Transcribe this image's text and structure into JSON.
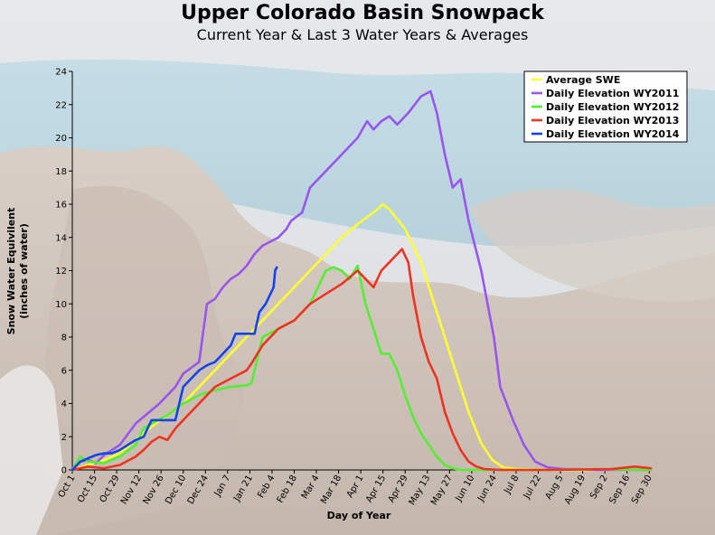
{
  "chart_data": {
    "type": "line",
    "title": "Upper Colorado Basin Snowpack",
    "subtitle": "Current Year & Last 3 Water Years & Averages",
    "xlabel": "Day of Year",
    "ylabel": "Snow Water Equivilent (inches of water)",
    "ylabel_lines": [
      "Snow Water Equivilent",
      "(inches of water)"
    ],
    "ylim": [
      0,
      24
    ],
    "yticks": [
      0,
      2,
      4,
      6,
      8,
      10,
      12,
      14,
      16,
      18,
      20,
      22,
      24
    ],
    "xlim": [
      0,
      365
    ],
    "xticks": [
      {
        "label": "Oct 1",
        "day": 0
      },
      {
        "label": "Oct 15",
        "day": 14
      },
      {
        "label": "Oct 29",
        "day": 28
      },
      {
        "label": "Nov 12",
        "day": 42
      },
      {
        "label": "Nov 26",
        "day": 56
      },
      {
        "label": "Dec 10",
        "day": 70
      },
      {
        "label": "Dec 24",
        "day": 84
      },
      {
        "label": "Jan 7",
        "day": 98
      },
      {
        "label": "Jan 21",
        "day": 112
      },
      {
        "label": "Feb 4",
        "day": 126
      },
      {
        "label": "Feb 18",
        "day": 140
      },
      {
        "label": "Mar 4",
        "day": 154
      },
      {
        "label": "Mar 18",
        "day": 168
      },
      {
        "label": "Apr 1",
        "day": 182
      },
      {
        "label": "Apr 15",
        "day": 196
      },
      {
        "label": "Apr 29",
        "day": 210
      },
      {
        "label": "May 13",
        "day": 224
      },
      {
        "label": "May 27",
        "day": 238
      },
      {
        "label": "Jun 10",
        "day": 252
      },
      {
        "label": "Jun 24",
        "day": 266
      },
      {
        "label": "Jul 8",
        "day": 280
      },
      {
        "label": "Jul 22",
        "day": 294
      },
      {
        "label": "Aug 5",
        "day": 308
      },
      {
        "label": "Aug 19",
        "day": 322
      },
      {
        "label": "Sep 2",
        "day": 336
      },
      {
        "label": "Sep 16",
        "day": 350
      },
      {
        "label": "Sep 30",
        "day": 364
      }
    ],
    "legend_position": "top-right",
    "grid": false,
    "series": [
      {
        "name": "Average SWE",
        "color": "#ffff33",
        "points": [
          [
            0,
            0
          ],
          [
            10,
            0.3
          ],
          [
            20,
            0.6
          ],
          [
            30,
            1.0
          ],
          [
            40,
            1.8
          ],
          [
            50,
            2.6
          ],
          [
            60,
            3.3
          ],
          [
            70,
            4.0
          ],
          [
            80,
            5.0
          ],
          [
            90,
            6.0
          ],
          [
            100,
            7.0
          ],
          [
            110,
            8.0
          ],
          [
            120,
            9.0
          ],
          [
            130,
            10.0
          ],
          [
            140,
            11.0
          ],
          [
            150,
            12.0
          ],
          [
            160,
            13.0
          ],
          [
            170,
            14.0
          ],
          [
            180,
            14.8
          ],
          [
            190,
            15.5
          ],
          [
            196,
            16.0
          ],
          [
            200,
            15.7
          ],
          [
            210,
            14.5
          ],
          [
            220,
            12.5
          ],
          [
            230,
            9.5
          ],
          [
            240,
            6.5
          ],
          [
            250,
            3.5
          ],
          [
            258,
            1.6
          ],
          [
            265,
            0.6
          ],
          [
            272,
            0.15
          ],
          [
            280,
            0.05
          ],
          [
            300,
            0
          ],
          [
            365,
            0
          ]
        ]
      },
      {
        "name": "Daily Elevation WY2011",
        "color": "#9955ee",
        "points": [
          [
            0,
            0.1
          ],
          [
            5,
            0.5
          ],
          [
            10,
            0.6
          ],
          [
            15,
            0.4
          ],
          [
            20,
            0.9
          ],
          [
            30,
            1.5
          ],
          [
            40,
            2.8
          ],
          [
            50,
            3.6
          ],
          [
            55,
            4.0
          ],
          [
            60,
            4.5
          ],
          [
            65,
            5.0
          ],
          [
            70,
            5.8
          ],
          [
            80,
            6.5
          ],
          [
            85,
            10.0
          ],
          [
            90,
            10.3
          ],
          [
            95,
            11.0
          ],
          [
            100,
            11.5
          ],
          [
            105,
            11.8
          ],
          [
            110,
            12.3
          ],
          [
            115,
            13.0
          ],
          [
            120,
            13.5
          ],
          [
            130,
            14.0
          ],
          [
            135,
            14.5
          ],
          [
            138,
            15.0
          ],
          [
            145,
            15.5
          ],
          [
            150,
            17.0
          ],
          [
            155,
            17.5
          ],
          [
            160,
            18.0
          ],
          [
            170,
            19.0
          ],
          [
            180,
            20.0
          ],
          [
            186,
            21.0
          ],
          [
            190,
            20.5
          ],
          [
            195,
            21.0
          ],
          [
            200,
            21.3
          ],
          [
            205,
            20.8
          ],
          [
            212,
            21.5
          ],
          [
            220,
            22.5
          ],
          [
            226,
            22.8
          ],
          [
            230,
            21.5
          ],
          [
            235,
            19.0
          ],
          [
            240,
            17.0
          ],
          [
            245,
            17.5
          ],
          [
            250,
            15.0
          ],
          [
            258,
            12.0
          ],
          [
            262,
            10.0
          ],
          [
            266,
            8.0
          ],
          [
            270,
            5.0
          ],
          [
            278,
            3.0
          ],
          [
            285,
            1.5
          ],
          [
            292,
            0.5
          ],
          [
            300,
            0.15
          ],
          [
            310,
            0.05
          ],
          [
            320,
            0.05
          ],
          [
            330,
            0
          ],
          [
            340,
            0
          ],
          [
            350,
            0
          ],
          [
            365,
            0
          ]
        ]
      },
      {
        "name": "Daily Elevation WY2012",
        "color": "#55ee33",
        "points": [
          [
            0,
            0
          ],
          [
            5,
            0.8
          ],
          [
            10,
            0.5
          ],
          [
            20,
            0.4
          ],
          [
            30,
            0.8
          ],
          [
            40,
            1.5
          ],
          [
            45,
            2.5
          ],
          [
            50,
            2.8
          ],
          [
            60,
            3.3
          ],
          [
            70,
            4.0
          ],
          [
            80,
            4.5
          ],
          [
            90,
            4.8
          ],
          [
            100,
            5.0
          ],
          [
            110,
            5.1
          ],
          [
            113,
            5.2
          ],
          [
            120,
            8.0
          ],
          [
            130,
            8.5
          ],
          [
            140,
            9.0
          ],
          [
            150,
            10.0
          ],
          [
            155,
            11.0
          ],
          [
            160,
            12.0
          ],
          [
            165,
            12.2
          ],
          [
            170,
            12.0
          ],
          [
            175,
            11.5
          ],
          [
            180,
            12.3
          ],
          [
            185,
            10.0
          ],
          [
            190,
            8.5
          ],
          [
            195,
            7.0
          ],
          [
            200,
            7.0
          ],
          [
            205,
            6.0
          ],
          [
            210,
            4.5
          ],
          [
            215,
            3.2
          ],
          [
            220,
            2.2
          ],
          [
            225,
            1.5
          ],
          [
            230,
            0.8
          ],
          [
            235,
            0.3
          ],
          [
            240,
            0.1
          ],
          [
            245,
            0
          ],
          [
            260,
            0
          ],
          [
            280,
            0
          ],
          [
            300,
            0
          ],
          [
            330,
            0.05
          ],
          [
            365,
            0
          ]
        ]
      },
      {
        "name": "Daily Elevation WY2013",
        "color": "#ee3322",
        "points": [
          [
            0,
            0
          ],
          [
            10,
            0.2
          ],
          [
            20,
            0.1
          ],
          [
            30,
            0.3
          ],
          [
            40,
            0.8
          ],
          [
            45,
            1.2
          ],
          [
            50,
            1.7
          ],
          [
            55,
            2.0
          ],
          [
            60,
            1.8
          ],
          [
            65,
            2.5
          ],
          [
            70,
            3.0
          ],
          [
            80,
            4.0
          ],
          [
            90,
            5.0
          ],
          [
            100,
            5.5
          ],
          [
            110,
            6.0
          ],
          [
            113,
            6.4
          ],
          [
            120,
            7.5
          ],
          [
            130,
            8.5
          ],
          [
            140,
            9.0
          ],
          [
            150,
            10.0
          ],
          [
            160,
            10.6
          ],
          [
            170,
            11.2
          ],
          [
            180,
            12.0
          ],
          [
            185,
            11.5
          ],
          [
            190,
            11.0
          ],
          [
            195,
            12.0
          ],
          [
            200,
            12.5
          ],
          [
            205,
            13.0
          ],
          [
            208,
            13.3
          ],
          [
            212,
            12.5
          ],
          [
            215,
            10.5
          ],
          [
            220,
            8.0
          ],
          [
            225,
            6.5
          ],
          [
            230,
            5.5
          ],
          [
            235,
            3.5
          ],
          [
            240,
            2.2
          ],
          [
            245,
            1.2
          ],
          [
            250,
            0.5
          ],
          [
            255,
            0.2
          ],
          [
            260,
            0.05
          ],
          [
            270,
            0
          ],
          [
            300,
            0
          ],
          [
            340,
            0.05
          ],
          [
            355,
            0.2
          ],
          [
            365,
            0.1
          ]
        ]
      },
      {
        "name": "Daily Elevation WY2014",
        "color": "#1144ee",
        "points": [
          [
            0,
            0
          ],
          [
            5,
            0.5
          ],
          [
            10,
            0.7
          ],
          [
            15,
            0.9
          ],
          [
            20,
            1.0
          ],
          [
            25,
            1.0
          ],
          [
            30,
            1.2
          ],
          [
            35,
            1.5
          ],
          [
            40,
            1.8
          ],
          [
            45,
            2.0
          ],
          [
            50,
            3.0
          ],
          [
            55,
            3.0
          ],
          [
            60,
            3.0
          ],
          [
            65,
            3.0
          ],
          [
            70,
            5.0
          ],
          [
            75,
            5.5
          ],
          [
            80,
            6.0
          ],
          [
            85,
            6.3
          ],
          [
            90,
            6.5
          ],
          [
            95,
            7.0
          ],
          [
            100,
            7.5
          ],
          [
            103,
            8.2
          ],
          [
            107,
            8.2
          ],
          [
            110,
            8.2
          ],
          [
            115,
            8.2
          ],
          [
            118,
            9.5
          ],
          [
            122,
            10.0
          ],
          [
            125,
            10.6
          ],
          [
            127,
            11.0
          ],
          [
            128,
            12.0
          ],
          [
            129,
            12.2
          ]
        ]
      }
    ]
  }
}
